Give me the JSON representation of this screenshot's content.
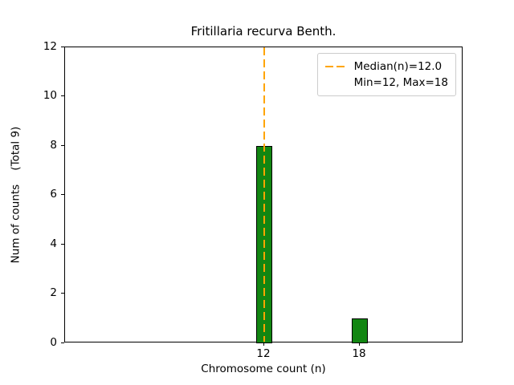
{
  "chart_data": {
    "type": "bar",
    "title": "Fritillaria recurva Benth.",
    "xlabel": "Chromosome count (n)",
    "ylabel": "Num of counts    (Total 9)",
    "x": [
      12,
      18
    ],
    "values": [
      8,
      1
    ],
    "bar_width": 1.0,
    "bar_color": "#128612",
    "bar_edge_color": "#000000",
    "xlim": [
      -0.5,
      24.5
    ],
    "ylim": [
      0,
      12
    ],
    "xticks": [
      12,
      18
    ],
    "yticks": [
      0,
      2,
      4,
      6,
      8,
      10,
      12
    ],
    "median_line": {
      "x": 12.0,
      "color": "#ffa500",
      "style": "dashed"
    },
    "legend": {
      "position": "upper right",
      "entries": [
        {
          "sample": "dashed-line",
          "label": "Median(n)=12.0"
        },
        {
          "sample": "none",
          "label": "Min=12, Max=18"
        }
      ]
    }
  }
}
